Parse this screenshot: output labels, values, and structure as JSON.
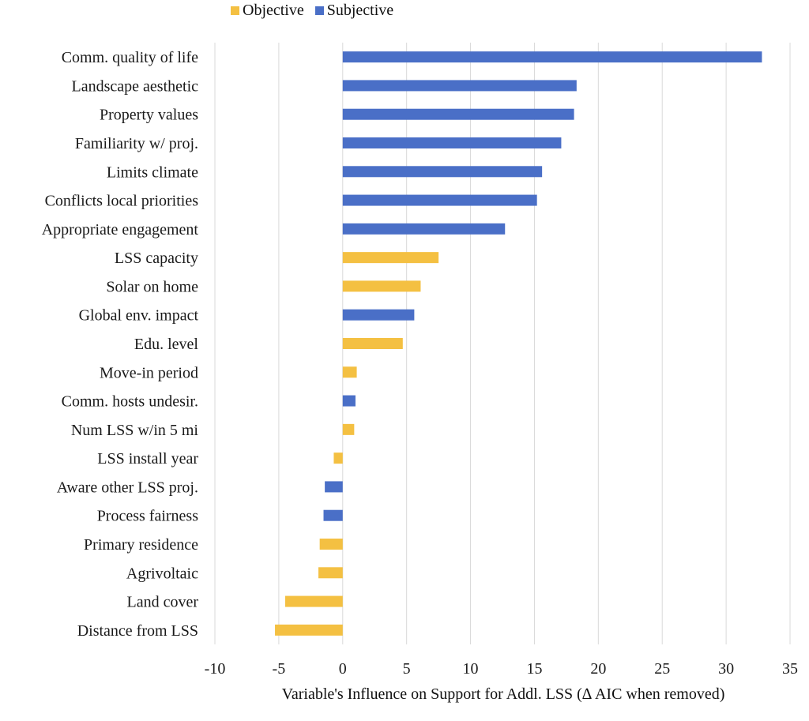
{
  "chart_data": {
    "type": "bar",
    "orientation": "horizontal",
    "xlabel": "Variable's Influence on Support for Addl. LSS (∆ AIC when removed)",
    "xlim": [
      -10,
      35
    ],
    "xticks": [
      -10,
      -5,
      0,
      5,
      10,
      15,
      20,
      25,
      30,
      35
    ],
    "grid": true,
    "legend_position": "top",
    "series": [
      {
        "name": "Objective",
        "color": "#F4C042"
      },
      {
        "name": "Subjective",
        "color": "#4A6FC7"
      }
    ],
    "categories": [
      "Comm. quality of life",
      "Landscape aesthetic",
      "Property values",
      "Familiarity w/ proj.",
      "Limits climate",
      "Conflicts local priorities",
      "Appropriate engagement",
      "LSS capacity",
      "Solar on home",
      "Global env. impact",
      "Edu. level",
      "Move-in period",
      "Comm. hosts undesir.",
      "Num LSS w/in 5 mi",
      "LSS install year",
      "Aware other LSS proj.",
      "Process fairness",
      "Primary residence",
      "Agrivoltaic",
      "Land cover",
      "Distance from LSS"
    ],
    "values": [
      32.8,
      18.3,
      18.1,
      17.1,
      15.6,
      15.2,
      12.7,
      7.5,
      6.1,
      5.6,
      4.7,
      1.1,
      1.0,
      0.9,
      -0.7,
      -1.4,
      -1.5,
      -1.8,
      -1.9,
      -4.5,
      -5.3
    ],
    "groups": [
      "Subjective",
      "Subjective",
      "Subjective",
      "Subjective",
      "Subjective",
      "Subjective",
      "Subjective",
      "Objective",
      "Objective",
      "Subjective",
      "Objective",
      "Objective",
      "Subjective",
      "Objective",
      "Objective",
      "Subjective",
      "Subjective",
      "Objective",
      "Objective",
      "Objective",
      "Objective"
    ]
  }
}
